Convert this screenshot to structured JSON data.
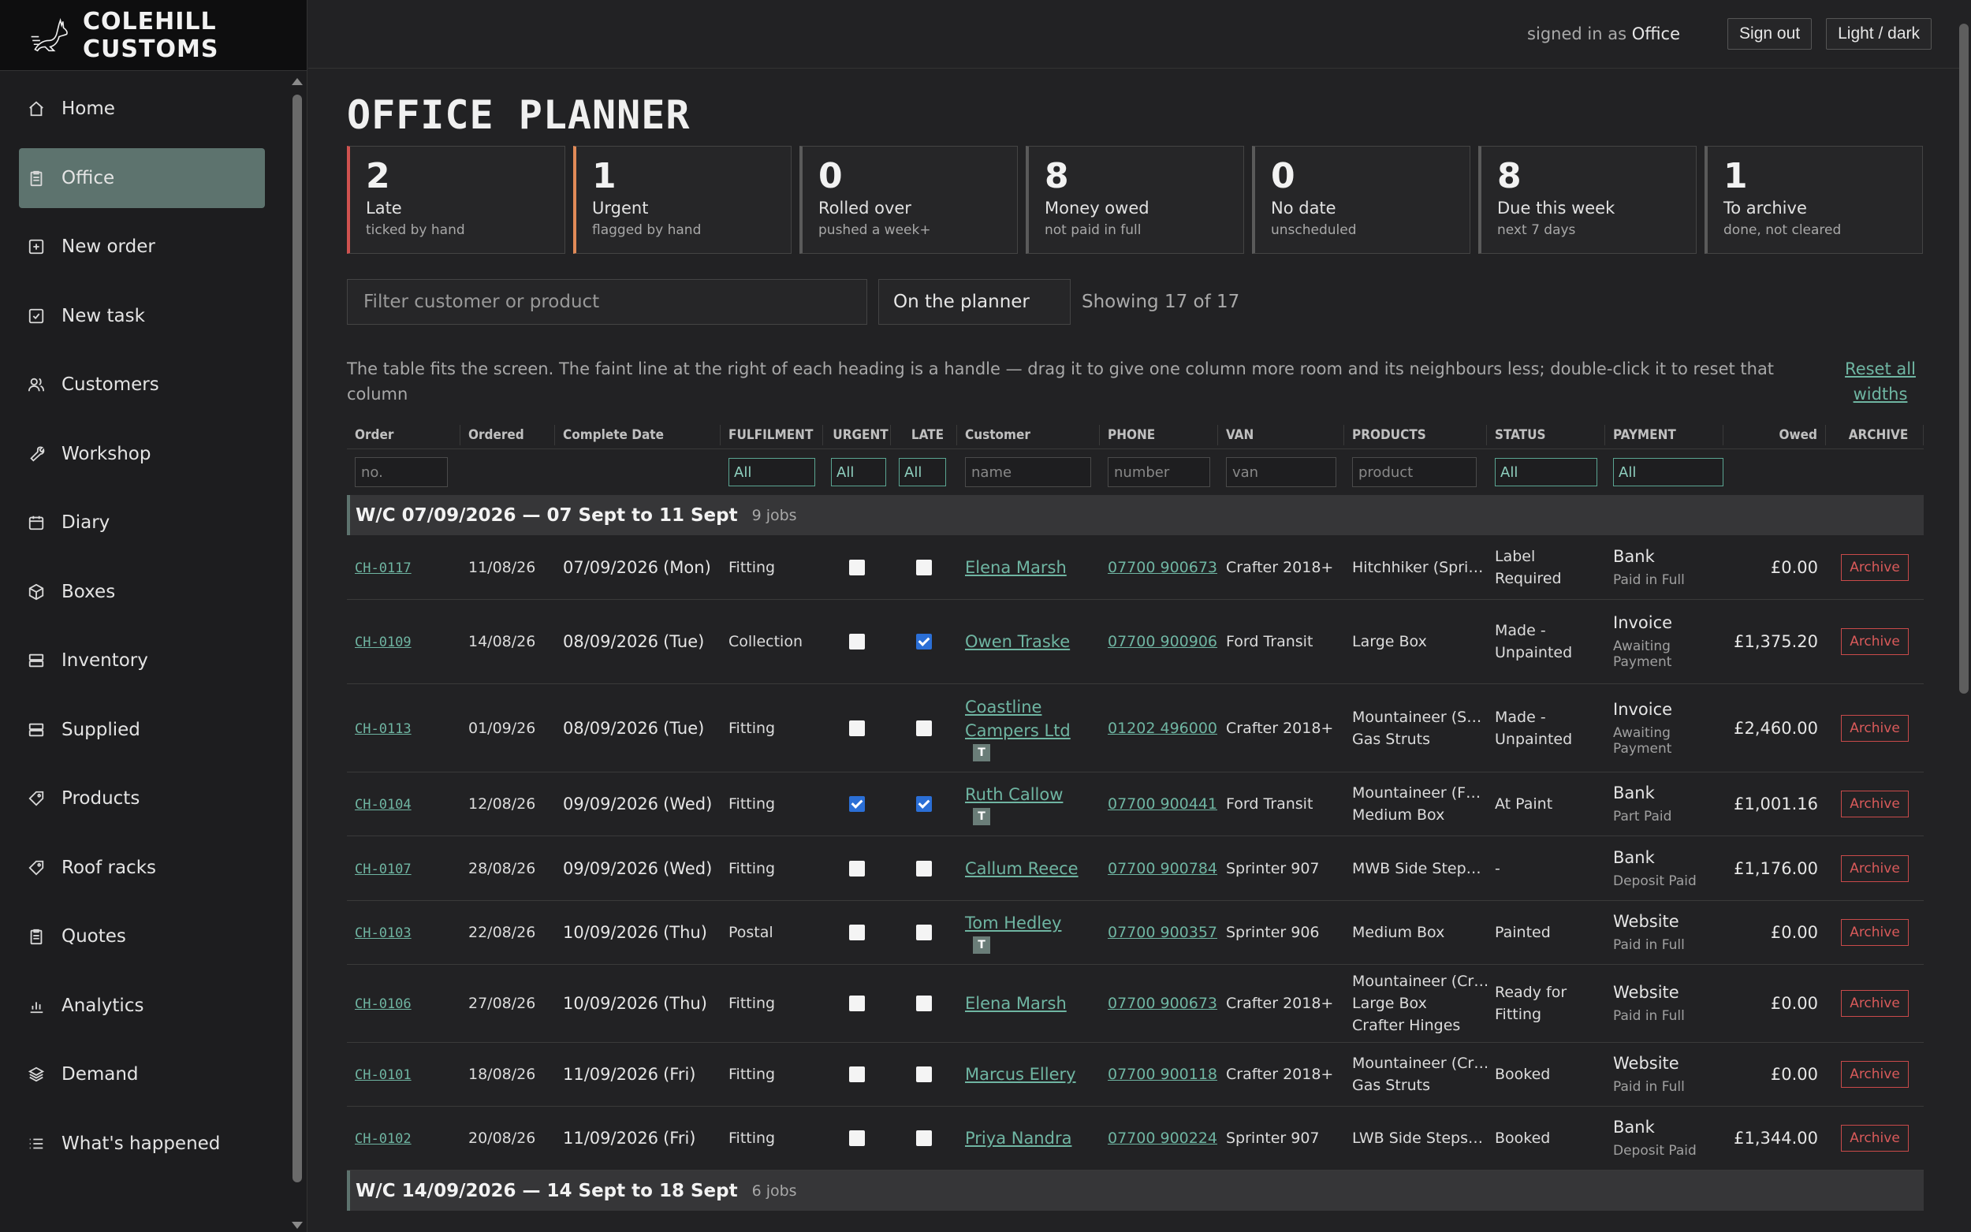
{
  "brand": {
    "name": "COLEHILL CUSTOMS",
    "logo": "hare-logo-icon"
  },
  "nav": [
    {
      "label": "Home",
      "icon": "home-icon"
    },
    {
      "label": "Office",
      "icon": "clipboard-icon",
      "active": true
    },
    {
      "label": "New order",
      "icon": "plus-square-icon"
    },
    {
      "label": "New task",
      "icon": "check-square-icon"
    },
    {
      "label": "Customers",
      "icon": "users-icon"
    },
    {
      "label": "Workshop",
      "icon": "wrench-icon"
    },
    {
      "label": "Diary",
      "icon": "calendar-icon"
    },
    {
      "label": "Boxes",
      "icon": "box-icon"
    },
    {
      "label": "Inventory",
      "icon": "server-icon"
    },
    {
      "label": "Supplied",
      "icon": "server-icon"
    },
    {
      "label": "Products",
      "icon": "tag-icon"
    },
    {
      "label": "Roof racks",
      "icon": "tag-icon"
    },
    {
      "label": "Quotes",
      "icon": "clipboard-icon"
    },
    {
      "label": "Analytics",
      "icon": "bar-chart-icon"
    },
    {
      "label": "Demand",
      "icon": "layers-icon"
    },
    {
      "label": "What's happened",
      "icon": "list-icon"
    }
  ],
  "topbar": {
    "signed_prefix": "signed in as",
    "user": "Office",
    "sign_out": "Sign out",
    "theme": "Light / dark"
  },
  "page_title": "OFFICE PLANNER",
  "cards": [
    {
      "num": "2",
      "label": "Late",
      "sub": "ticked by hand",
      "accent": "#d0524f"
    },
    {
      "num": "1",
      "label": "Urgent",
      "sub": "flagged by hand",
      "accent": "#e08a58"
    },
    {
      "num": "0",
      "label": "Rolled over",
      "sub": "pushed a week+"
    },
    {
      "num": "8",
      "label": "Money owed",
      "sub": "not paid in full"
    },
    {
      "num": "0",
      "label": "No date",
      "sub": "unscheduled"
    },
    {
      "num": "8",
      "label": "Due this week",
      "sub": "next 7 days"
    },
    {
      "num": "1",
      "label": "To archive",
      "sub": "done, not cleared"
    }
  ],
  "filters": {
    "search_placeholder": "Filter customer or product",
    "scope": "On the planner",
    "showing": "Showing 17 of 17"
  },
  "hint": "The table fits the screen. The faint line at the right of each heading is a handle — drag it to give one column more room and its neighbours less; double-click it to reset that column",
  "reset_label": "Reset all widths",
  "columns": [
    "Order",
    "Ordered",
    "Complete Date",
    "FULFILMENT",
    "URGENT",
    "LATE",
    "Customer",
    "PHONE",
    "VAN",
    "PRODUCTS",
    "STATUS",
    "PAYMENT",
    "Owed",
    "ARCHIVE"
  ],
  "column_filters": {
    "order": "no.",
    "fulfilment": "All",
    "urgent": "All",
    "late": "All",
    "customer": "name",
    "phone": "number",
    "van": "van",
    "products": "product",
    "status": "All",
    "payment": "All"
  },
  "groups": [
    {
      "title": "W/C 07/09/2026 — 07 Sept to 11 Sept",
      "count": "9 jobs",
      "rows": [
        {
          "id": "CH-0117",
          "ordered": "11/08/26",
          "date": "07/09/2026",
          "dow": "(Mon)",
          "fulfilment": "Fitting",
          "urgent": false,
          "late": false,
          "customer": "Elena Marsh",
          "trade": false,
          "phone": "07700 900673",
          "van": "Crafter 2018+",
          "products": [
            "Hitchhiker (Spri…"
          ],
          "status": "Label Required",
          "pay": "Bank",
          "pay_sub": "Paid in Full",
          "owed": "£0.00",
          "h": 82
        },
        {
          "id": "CH-0109",
          "ordered": "14/08/26",
          "date": "08/09/2026",
          "dow": "(Tue)",
          "fulfilment": "Collection",
          "urgent": false,
          "late": true,
          "customer": "Owen Traske",
          "trade": false,
          "phone": "07700 900906",
          "van": "Ford Transit",
          "products": [
            "Large Box"
          ],
          "status": "Made - Unpainted",
          "pay": "Invoice",
          "pay_sub": "Awaiting Payment",
          "owed": "£1,375.20",
          "h": 107
        },
        {
          "id": "CH-0113",
          "ordered": "01/09/26",
          "date": "08/09/2026",
          "dow": "(Tue)",
          "fulfilment": "Fitting",
          "urgent": false,
          "late": false,
          "customer": "Coastline Campers Ltd",
          "trade": true,
          "phone": "01202 496000",
          "van": "Crafter 2018+",
          "products": [
            "Mountaineer (S…",
            "Gas Struts"
          ],
          "status": "Made - Unpainted",
          "pay": "Invoice",
          "pay_sub": "Awaiting Payment",
          "owed": "£2,460.00",
          "h": 112
        },
        {
          "id": "CH-0104",
          "ordered": "12/08/26",
          "date": "09/09/2026",
          "dow": "(Wed)",
          "fulfilment": "Fitting",
          "urgent": true,
          "late": true,
          "customer": "Ruth Callow",
          "trade": true,
          "phone": "07700 900441",
          "van": "Ford Transit",
          "products": [
            "Mountaineer (F…",
            "Medium Box"
          ],
          "status": "At Paint",
          "pay": "Bank",
          "pay_sub": "Part Paid",
          "owed": "£1,001.16",
          "h": 81
        },
        {
          "id": "CH-0107",
          "ordered": "28/08/26",
          "date": "09/09/2026",
          "dow": "(Wed)",
          "fulfilment": "Fitting",
          "urgent": false,
          "late": false,
          "customer": "Callum Reece",
          "trade": false,
          "phone": "07700 900784",
          "van": "Sprinter 907",
          "products": [
            "MWB Side Step…"
          ],
          "status": "-",
          "pay": "Bank",
          "pay_sub": "Deposit Paid",
          "owed": "£1,176.00",
          "h": 82
        },
        {
          "id": "CH-0103",
          "ordered": "22/08/26",
          "date": "10/09/2026",
          "dow": "(Thu)",
          "fulfilment": "Postal",
          "urgent": false,
          "late": false,
          "customer": "Tom Hedley",
          "trade": true,
          "phone": "07700 900357",
          "van": "Sprinter 906",
          "products": [
            "Medium Box"
          ],
          "status": "Painted",
          "pay": "Website",
          "pay_sub": "Paid in Full",
          "owed": "£0.00",
          "h": 81
        },
        {
          "id": "CH-0106",
          "ordered": "27/08/26",
          "date": "10/09/2026",
          "dow": "(Thu)",
          "fulfilment": "Fitting",
          "urgent": false,
          "late": false,
          "customer": "Elena Marsh",
          "trade": false,
          "phone": "07700 900673",
          "van": "Crafter 2018+",
          "products": [
            "Mountaineer (Cr…",
            "Large Box",
            "Crafter Hinges"
          ],
          "status": "Ready for Fitting",
          "pay": "Website",
          "pay_sub": "Paid in Full",
          "owed": "£0.00",
          "h": 99
        },
        {
          "id": "CH-0101",
          "ordered": "18/08/26",
          "date": "11/09/2026",
          "dow": "(Fri)",
          "fulfilment": "Fitting",
          "urgent": false,
          "late": false,
          "customer": "Marcus Ellery",
          "trade": false,
          "phone": "07700 900118",
          "van": "Crafter 2018+",
          "products": [
            "Mountaineer (Cr…",
            "Gas Struts"
          ],
          "status": "Booked",
          "pay": "Website",
          "pay_sub": "Paid in Full",
          "owed": "£0.00",
          "h": 81
        },
        {
          "id": "CH-0102",
          "ordered": "20/08/26",
          "date": "11/09/2026",
          "dow": "(Fri)",
          "fulfilment": "Fitting",
          "urgent": false,
          "late": false,
          "customer": "Priya Nandra",
          "trade": false,
          "phone": "07700 900224",
          "van": "Sprinter 907",
          "products": [
            "LWB Side Steps…"
          ],
          "status": "Booked",
          "pay": "Bank",
          "pay_sub": "Deposit Paid",
          "owed": "£1,344.00",
          "h": 81
        }
      ]
    },
    {
      "title": "W/C 14/09/2026 — 14 Sept to 18 Sept",
      "count": "6 jobs",
      "rows": []
    }
  ],
  "archive_label": "Archive"
}
